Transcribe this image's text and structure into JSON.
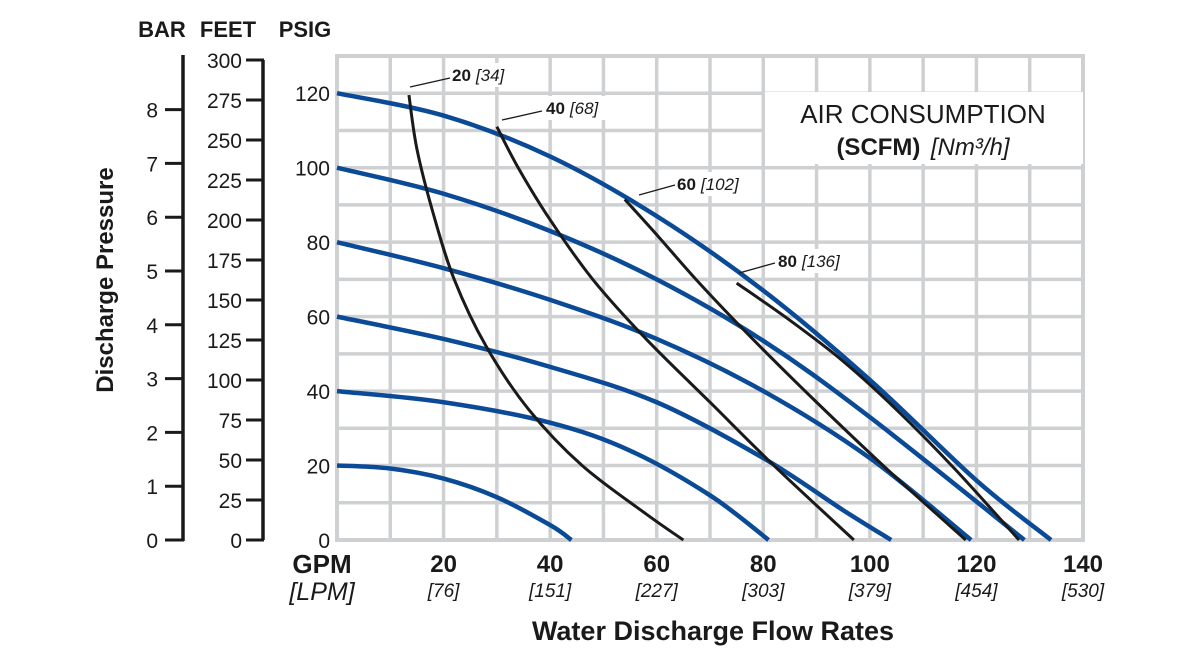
{
  "chart_data": {
    "type": "line",
    "title": "",
    "xlabel": "Water Discharge Flow Rates",
    "x_unit": "GPM",
    "x_unit_secondary": "[LPM]",
    "xlim": [
      0,
      140
    ],
    "ylim": [
      0,
      130
    ],
    "grid": true,
    "x_ticks": [
      {
        "value": 20,
        "label": "20",
        "secondary": "[76]"
      },
      {
        "value": 40,
        "label": "40",
        "secondary": "[151]"
      },
      {
        "value": 60,
        "label": "60",
        "secondary": "[227]"
      },
      {
        "value": 80,
        "label": "80",
        "secondary": "[303]"
      },
      {
        "value": 100,
        "label": "100",
        "secondary": "[379]"
      },
      {
        "value": 120,
        "label": "120",
        "secondary": "[454]"
      },
      {
        "value": 140,
        "label": "140",
        "secondary": "[530]"
      }
    ],
    "y_axes": [
      {
        "unit": "PSIG",
        "ticks": [
          "0",
          "20",
          "40",
          "60",
          "80",
          "100",
          "120"
        ],
        "values": [
          0,
          20,
          40,
          60,
          80,
          100,
          120
        ]
      },
      {
        "unit": "FEET",
        "ticks": [
          "0",
          "25",
          "50",
          "75",
          "100",
          "125",
          "150",
          "175",
          "200",
          "225",
          "250",
          "275",
          "300"
        ],
        "values": [
          0,
          25,
          50,
          75,
          100,
          125,
          150,
          175,
          200,
          225,
          250,
          275,
          300
        ]
      },
      {
        "unit": "BAR",
        "ticks": [
          "0",
          "1",
          "2",
          "3",
          "4",
          "5",
          "6",
          "7",
          "8"
        ],
        "values": [
          0,
          1,
          2,
          3,
          4,
          5,
          6,
          7,
          8
        ]
      }
    ],
    "ylabel": "Discharge Pressure",
    "legend": {
      "title": "AIR CONSUMPTION",
      "unit_bold": "(SCFM)",
      "unit_italic": "[Nm³/h]",
      "placement": "top-right"
    },
    "series_color_pump": "#0b4a96",
    "series_color_air": "#1a1a1a",
    "pump_curves": [
      {
        "name": "pump-curve-20psi",
        "points": [
          [
            0,
            20
          ],
          [
            10,
            19.2
          ],
          [
            20,
            16.5
          ],
          [
            30,
            11.5
          ],
          [
            40,
            4
          ],
          [
            44,
            0
          ]
        ]
      },
      {
        "name": "pump-curve-40psi",
        "points": [
          [
            0,
            40
          ],
          [
            20,
            37
          ],
          [
            40,
            31.5
          ],
          [
            55,
            24
          ],
          [
            70,
            12
          ],
          [
            81,
            0
          ]
        ]
      },
      {
        "name": "pump-curve-60psi",
        "points": [
          [
            0,
            60
          ],
          [
            20,
            54
          ],
          [
            40,
            46.5
          ],
          [
            60,
            37
          ],
          [
            80,
            22
          ],
          [
            95,
            8
          ],
          [
            104,
            0
          ]
        ]
      },
      {
        "name": "pump-curve-80psi",
        "points": [
          [
            0,
            80
          ],
          [
            20,
            73
          ],
          [
            40,
            64.5
          ],
          [
            60,
            54
          ],
          [
            80,
            40
          ],
          [
            100,
            22
          ],
          [
            119,
            0
          ]
        ]
      },
      {
        "name": "pump-curve-100psi",
        "points": [
          [
            0,
            100
          ],
          [
            20,
            93
          ],
          [
            40,
            83
          ],
          [
            60,
            70
          ],
          [
            80,
            53.5
          ],
          [
            100,
            33
          ],
          [
            129,
            0
          ]
        ]
      },
      {
        "name": "pump-curve-120psi",
        "points": [
          [
            0,
            120
          ],
          [
            20,
            114
          ],
          [
            40,
            103
          ],
          [
            60,
            87
          ],
          [
            80,
            67
          ],
          [
            100,
            43
          ],
          [
            120,
            16
          ],
          [
            134,
            0
          ]
        ]
      }
    ],
    "air_curves": [
      {
        "name": "air-curve-20",
        "label": "20",
        "label_metric": "[34]",
        "points": [
          [
            13.5,
            119.5
          ],
          [
            15,
            105
          ],
          [
            18,
            88
          ],
          [
            22,
            70
          ],
          [
            28,
            52
          ],
          [
            36,
            35
          ],
          [
            46,
            20
          ],
          [
            58,
            7
          ],
          [
            65,
            0
          ]
        ]
      },
      {
        "name": "air-curve-40",
        "label": "40",
        "label_metric": "[68]",
        "points": [
          [
            30,
            111
          ],
          [
            34,
            100
          ],
          [
            40,
            86
          ],
          [
            48,
            70
          ],
          [
            58,
            54
          ],
          [
            70,
            37
          ],
          [
            82,
            20
          ],
          [
            97,
            0
          ]
        ]
      },
      {
        "name": "air-curve-60",
        "label": "60",
        "label_metric": "[102]",
        "points": [
          [
            54,
            91.5
          ],
          [
            60,
            82
          ],
          [
            68,
            69
          ],
          [
            78,
            54
          ],
          [
            90,
            37
          ],
          [
            104,
            18
          ],
          [
            118,
            0
          ]
        ]
      },
      {
        "name": "air-curve-80",
        "label": "80",
        "label_metric": "[136]",
        "points": [
          [
            75,
            69
          ],
          [
            85,
            59
          ],
          [
            95,
            48
          ],
          [
            105,
            35
          ],
          [
            116,
            19
          ],
          [
            128,
            0
          ]
        ]
      }
    ]
  }
}
